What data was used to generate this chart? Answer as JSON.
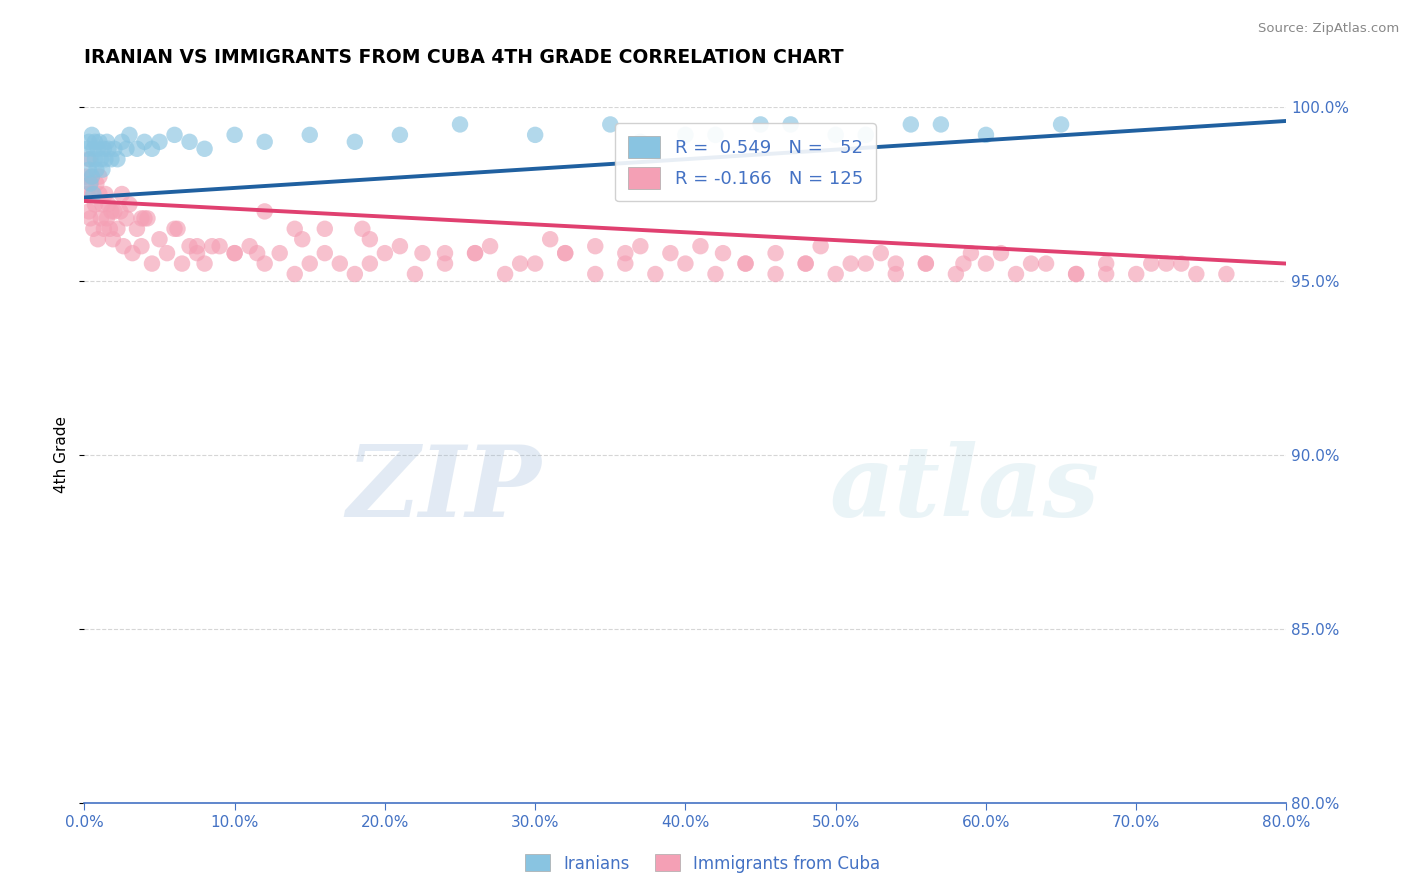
{
  "title": "IRANIAN VS IMMIGRANTS FROM CUBA 4TH GRADE CORRELATION CHART",
  "source_text": "Source: ZipAtlas.com",
  "ylabel": "4th Grade",
  "xlim": [
    0.0,
    80.0
  ],
  "ylim": [
    80.0,
    100.0
  ],
  "x_ticks": [
    0.0,
    10.0,
    20.0,
    30.0,
    40.0,
    50.0,
    60.0,
    70.0,
    80.0
  ],
  "y_ticks": [
    80.0,
    85.0,
    90.0,
    95.0,
    100.0
  ],
  "blue_color": "#89c4e1",
  "pink_color": "#f4a0b5",
  "blue_line_color": "#2060a0",
  "pink_line_color": "#e04070",
  "axis_color": "#4472c4",
  "grid_color": "#cccccc",
  "watermark_zip": "ZIP",
  "watermark_atlas": "atlas",
  "legend_label_blue": "Iranians",
  "legend_label_pink": "Immigrants from Cuba",
  "blue_trend_x0": 0.0,
  "blue_trend_y0": 97.4,
  "blue_trend_x1": 80.0,
  "blue_trend_y1": 99.6,
  "pink_trend_x0": 0.0,
  "pink_trend_y0": 97.3,
  "pink_trend_x1": 80.0,
  "pink_trend_y1": 95.5,
  "blue_x": [
    0.2,
    0.3,
    0.3,
    0.4,
    0.4,
    0.5,
    0.5,
    0.6,
    0.6,
    0.7,
    0.7,
    0.8,
    0.9,
    1.0,
    1.1,
    1.2,
    1.3,
    1.4,
    1.5,
    1.6,
    1.8,
    2.0,
    2.2,
    2.5,
    2.8,
    3.0,
    3.5,
    4.0,
    4.5,
    5.0,
    6.0,
    7.0,
    8.0,
    10.0,
    12.0,
    15.0,
    18.0,
    21.0,
    25.0,
    30.0,
    35.0,
    40.0,
    45.0,
    50.0,
    55.0,
    60.0,
    65.0,
    37.0,
    42.0,
    47.0,
    52.0,
    57.0
  ],
  "blue_y": [
    98.8,
    98.2,
    99.0,
    97.8,
    98.5,
    99.2,
    98.0,
    97.5,
    98.8,
    98.5,
    99.0,
    98.2,
    98.8,
    99.0,
    98.5,
    98.2,
    98.8,
    98.5,
    99.0,
    98.8,
    98.5,
    98.8,
    98.5,
    99.0,
    98.8,
    99.2,
    98.8,
    99.0,
    98.8,
    99.0,
    99.2,
    99.0,
    98.8,
    99.2,
    99.0,
    99.2,
    99.0,
    99.2,
    99.5,
    99.2,
    99.5,
    99.2,
    99.5,
    99.2,
    99.5,
    99.2,
    99.5,
    99.0,
    99.2,
    99.5,
    99.2,
    99.5
  ],
  "pink_x": [
    0.1,
    0.2,
    0.3,
    0.3,
    0.4,
    0.4,
    0.5,
    0.5,
    0.6,
    0.7,
    0.8,
    0.9,
    1.0,
    1.0,
    1.1,
    1.2,
    1.3,
    1.4,
    1.5,
    1.6,
    1.7,
    1.8,
    1.9,
    2.0,
    2.2,
    2.4,
    2.6,
    2.8,
    3.0,
    3.2,
    3.5,
    3.8,
    4.0,
    4.5,
    5.0,
    5.5,
    6.0,
    6.5,
    7.0,
    7.5,
    8.0,
    9.0,
    10.0,
    11.0,
    12.0,
    13.0,
    14.0,
    15.0,
    16.0,
    17.0,
    18.0,
    19.0,
    20.0,
    22.0,
    24.0,
    26.0,
    28.0,
    30.0,
    32.0,
    34.0,
    36.0,
    38.0,
    40.0,
    42.0,
    44.0,
    46.0,
    48.0,
    50.0,
    52.0,
    54.0,
    56.0,
    58.0,
    60.0,
    62.0,
    64.0,
    66.0,
    68.0,
    70.0,
    72.0,
    74.0,
    4.2,
    6.2,
    8.5,
    11.5,
    14.5,
    18.5,
    22.5,
    27.0,
    32.0,
    37.0,
    42.5,
    48.0,
    53.0,
    58.5,
    63.0,
    68.0,
    73.0,
    12.0,
    16.0,
    21.0,
    26.0,
    31.0,
    36.0,
    41.0,
    46.0,
    51.0,
    56.0,
    61.0,
    66.0,
    71.0,
    76.0,
    2.5,
    3.8,
    7.5,
    10.0,
    14.0,
    19.0,
    24.0,
    29.0,
    34.0,
    39.0,
    44.0,
    49.0,
    54.0,
    59.0
  ],
  "pink_y": [
    98.0,
    97.5,
    98.5,
    97.0,
    97.8,
    96.8,
    97.5,
    98.0,
    96.5,
    97.2,
    97.8,
    96.2,
    97.5,
    98.0,
    96.8,
    97.2,
    96.5,
    97.5,
    96.8,
    97.2,
    96.5,
    97.0,
    96.2,
    97.0,
    96.5,
    97.0,
    96.0,
    96.8,
    97.2,
    95.8,
    96.5,
    96.0,
    96.8,
    95.5,
    96.2,
    95.8,
    96.5,
    95.5,
    96.0,
    95.8,
    95.5,
    96.0,
    95.8,
    96.0,
    95.5,
    95.8,
    95.2,
    95.5,
    95.8,
    95.5,
    95.2,
    95.5,
    95.8,
    95.2,
    95.5,
    95.8,
    95.2,
    95.5,
    95.8,
    95.2,
    95.5,
    95.2,
    95.5,
    95.2,
    95.5,
    95.2,
    95.5,
    95.2,
    95.5,
    95.2,
    95.5,
    95.2,
    95.5,
    95.2,
    95.5,
    95.2,
    95.5,
    95.2,
    95.5,
    95.2,
    96.8,
    96.5,
    96.0,
    95.8,
    96.2,
    96.5,
    95.8,
    96.0,
    95.8,
    96.0,
    95.8,
    95.5,
    95.8,
    95.5,
    95.5,
    95.2,
    95.5,
    97.0,
    96.5,
    96.0,
    95.8,
    96.2,
    95.8,
    96.0,
    95.8,
    95.5,
    95.5,
    95.8,
    95.2,
    95.5,
    95.2,
    97.5,
    96.8,
    96.0,
    95.8,
    96.5,
    96.2,
    95.8,
    95.5,
    96.0,
    95.8,
    95.5,
    96.0,
    95.5,
    95.8
  ]
}
